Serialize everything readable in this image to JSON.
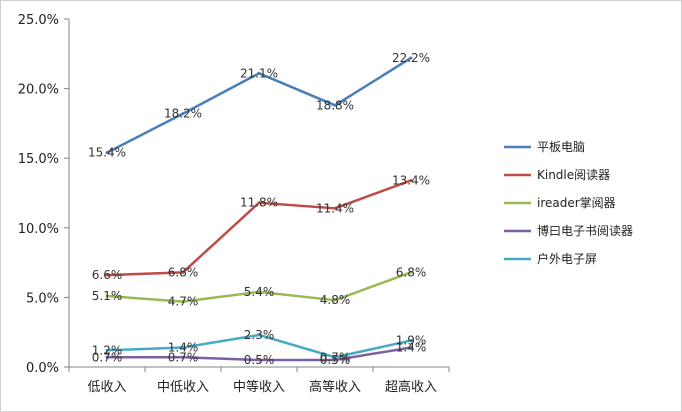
{
  "chart_data": {
    "type": "line",
    "categories": [
      "低收入",
      "中低收入",
      "中等收入",
      "高等收入",
      "超高收入"
    ],
    "ylim": [
      0,
      25
    ],
    "y_ticks": [
      0,
      5,
      10,
      15,
      20,
      25
    ],
    "y_tick_labels": [
      "0.0%",
      "5.0%",
      "10.0%",
      "15.0%",
      "20.0%",
      "25.0%"
    ],
    "grid": false,
    "legend": "right",
    "series": [
      {
        "name": "平板电脑",
        "color": "#4a7ebb",
        "values": [
          15.4,
          18.2,
          21.1,
          18.8,
          22.2
        ],
        "labels": [
          "15.4%",
          "18.2%",
          "21.1%",
          "18.8%",
          "22.2%"
        ]
      },
      {
        "name": "Kindle阅读器",
        "color": "#be4b48",
        "values": [
          6.6,
          6.8,
          11.8,
          11.4,
          13.4
        ],
        "labels": [
          "6.6%",
          "6.8%",
          "11.8%",
          "11.4%",
          "13.4%"
        ]
      },
      {
        "name": "ireader掌阅器",
        "color": "#98b954",
        "values": [
          5.1,
          4.7,
          5.4,
          4.8,
          6.8
        ],
        "labels": [
          "5.1%",
          "4.7%",
          "5.4%",
          "4.8%",
          "6.8%"
        ]
      },
      {
        "name": "博曰电子书阅读器",
        "color": "#7d60a0",
        "values": [
          0.7,
          0.7,
          0.5,
          0.5,
          1.4
        ],
        "labels": [
          "0.7%",
          "0.7%",
          "0.5%",
          "0.5%",
          "1.4%"
        ]
      },
      {
        "name": "户外电子屏",
        "color": "#46aac5",
        "values": [
          1.2,
          1.4,
          2.3,
          0.7,
          1.9
        ],
        "labels": [
          "1.2%",
          "1.4%",
          "2.3%",
          "0.7%",
          "1.9%"
        ]
      }
    ]
  }
}
